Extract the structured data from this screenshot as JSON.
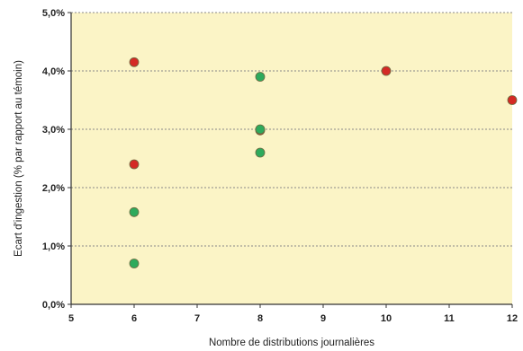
{
  "chart_data": {
    "type": "scatter",
    "title": "",
    "xlabel": "Nombre de distributions journalières",
    "ylabel": "Ecart d'ingestion (% par rapport au témoin)",
    "xlim": [
      5,
      12
    ],
    "ylim": [
      0,
      5
    ],
    "x_ticks": [
      {
        "value": 5,
        "label": "5"
      },
      {
        "value": 6,
        "label": "6"
      },
      {
        "value": 7,
        "label": "7"
      },
      {
        "value": 8,
        "label": "8"
      },
      {
        "value": 9,
        "label": "9"
      },
      {
        "value": 10,
        "label": "10"
      },
      {
        "value": 11,
        "label": "11"
      },
      {
        "value": 12,
        "label": "12"
      }
    ],
    "y_ticks": [
      {
        "value": 0,
        "label": "0,0%"
      },
      {
        "value": 1,
        "label": "1,0%"
      },
      {
        "value": 2,
        "label": "2,0%"
      },
      {
        "value": 3,
        "label": "3,0%"
      },
      {
        "value": 4,
        "label": "4,0%"
      },
      {
        "value": 5,
        "label": "5,0%"
      }
    ],
    "grid": "horizontal dotted",
    "legend": "none",
    "series": [
      {
        "color": "#d42a25",
        "points": [
          {
            "x": 6,
            "y": 4.15
          },
          {
            "x": 6,
            "y": 2.4
          },
          {
            "x": 8,
            "y": 2.98
          },
          {
            "x": 10,
            "y": 4.0
          },
          {
            "x": 12,
            "y": 3.5
          }
        ]
      },
      {
        "color": "#2eaa5c",
        "points": [
          {
            "x": 6,
            "y": 1.58
          },
          {
            "x": 6,
            "y": 0.7
          },
          {
            "x": 8,
            "y": 3.9
          },
          {
            "x": 8,
            "y": 3.0
          },
          {
            "x": 8,
            "y": 2.6
          }
        ]
      }
    ],
    "colors": {
      "plot_background": "#fbf4c6",
      "axis": "#333333",
      "grid": "#888888"
    }
  }
}
